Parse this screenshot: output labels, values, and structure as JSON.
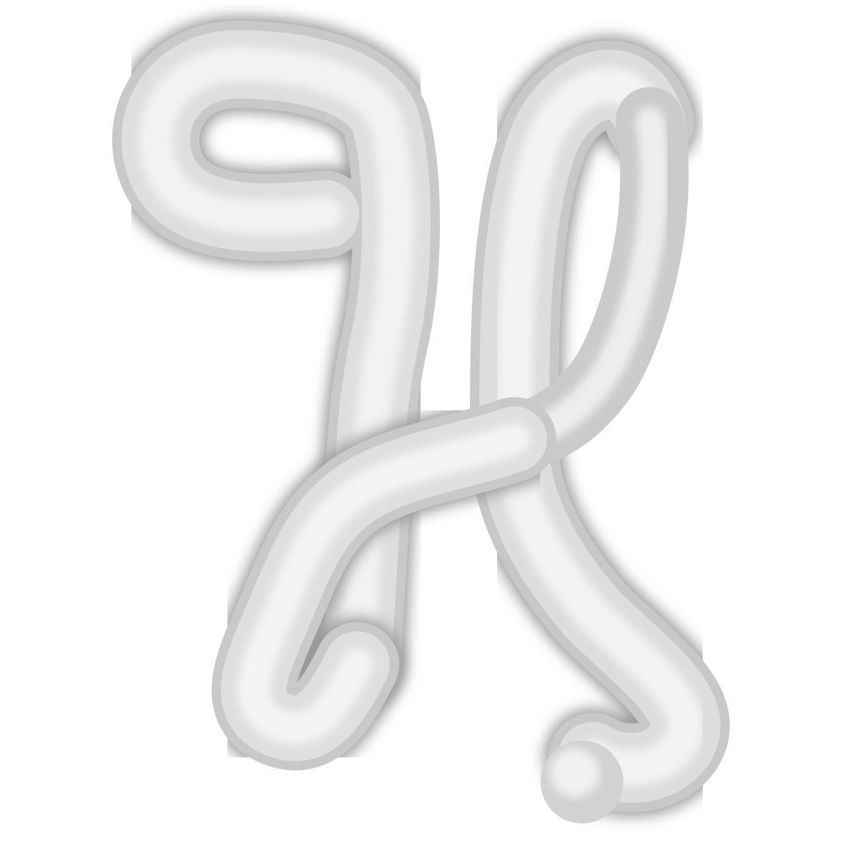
{
  "scene": {
    "subject": "tube-letter-h",
    "background_color": "#ffffff",
    "tube_color_light": "#f4f4f4",
    "tube_color_mid": "#dcdcdc",
    "tube_color_dark": "#a8a8a8",
    "shadow_color": "#8e8e8e"
  }
}
